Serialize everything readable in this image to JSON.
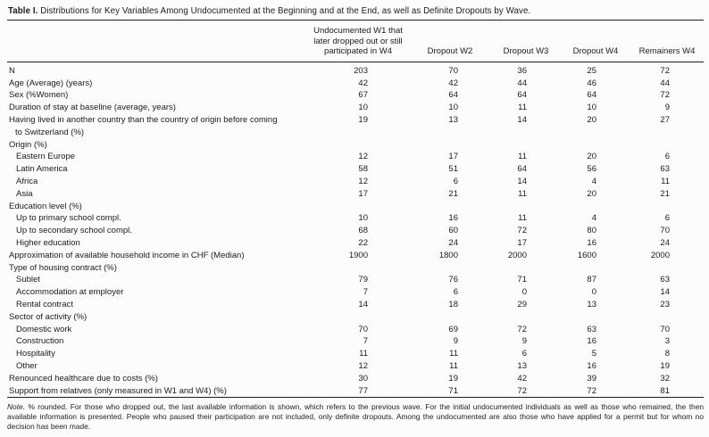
{
  "title": {
    "label": "Table I.",
    "text": "Distributions for Key Variables Among Undocumented at the Beginning and at the End, as well as Definite Dropouts by Wave."
  },
  "table": {
    "columns": [
      "Undocumented W1 that\nlater dropped out or still\nparticipated in W4",
      "Dropout W2",
      "Dropout W3",
      "Dropout W4",
      "Remainers W4"
    ],
    "rows": [
      {
        "label": "N",
        "indent": 0,
        "values": [
          "203",
          "70",
          "36",
          "25",
          "72"
        ]
      },
      {
        "label": "Age (Average) (years)",
        "indent": 0,
        "values": [
          "42",
          "42",
          "44",
          "46",
          "44"
        ]
      },
      {
        "label": "Sex (%Women)",
        "indent": 0,
        "values": [
          "67",
          "64",
          "64",
          "64",
          "72"
        ]
      },
      {
        "label": "Duration of stay at baseline (average, years)",
        "indent": 0,
        "values": [
          "10",
          "10",
          "11",
          "10",
          "9"
        ]
      },
      {
        "label": "Having lived in another country than the country of origin before coming\nto Switzerland (%)",
        "indent": 0,
        "values": [
          "19",
          "13",
          "14",
          "20",
          "27"
        ]
      },
      {
        "label": "Origin (%)",
        "indent": 0,
        "values": [
          "",
          "",
          "",
          "",
          ""
        ]
      },
      {
        "label": "Eastern Europe",
        "indent": 1,
        "values": [
          "12",
          "17",
          "11",
          "20",
          "6"
        ]
      },
      {
        "label": "Latin America",
        "indent": 1,
        "values": [
          "58",
          "51",
          "64",
          "56",
          "63"
        ]
      },
      {
        "label": "Africa",
        "indent": 1,
        "values": [
          "12",
          "6",
          "14",
          "4",
          "11"
        ]
      },
      {
        "label": "Asia",
        "indent": 1,
        "values": [
          "17",
          "21",
          "11",
          "20",
          "21"
        ]
      },
      {
        "label": "Education level (%)",
        "indent": 0,
        "values": [
          "",
          "",
          "",
          "",
          ""
        ]
      },
      {
        "label": "Up to primary school compl.",
        "indent": 1,
        "values": [
          "10",
          "16",
          "11",
          "4",
          "6"
        ]
      },
      {
        "label": "Up to secondary school compl.",
        "indent": 1,
        "values": [
          "68",
          "60",
          "72",
          "80",
          "70"
        ]
      },
      {
        "label": "Higher education",
        "indent": 1,
        "values": [
          "22",
          "24",
          "17",
          "16",
          "24"
        ]
      },
      {
        "label": "Approximation of available household income in CHF (Median)",
        "indent": 0,
        "values": [
          "1900",
          "1800",
          "2000",
          "1600",
          "2000"
        ]
      },
      {
        "label": "Type of housing contract (%)",
        "indent": 0,
        "values": [
          "",
          "",
          "",
          "",
          ""
        ]
      },
      {
        "label": "Sublet",
        "indent": 1,
        "values": [
          "79",
          "76",
          "71",
          "87",
          "63"
        ]
      },
      {
        "label": "Accommodation at employer",
        "indent": 1,
        "values": [
          "7",
          "6",
          "0",
          "0",
          "14"
        ]
      },
      {
        "label": "Rental contract",
        "indent": 1,
        "values": [
          "14",
          "18",
          "29",
          "13",
          "23"
        ]
      },
      {
        "label": "Sector of activity (%)",
        "indent": 0,
        "values": [
          "",
          "",
          "",
          "",
          ""
        ]
      },
      {
        "label": "Domestic work",
        "indent": 1,
        "values": [
          "70",
          "69",
          "72",
          "63",
          "70"
        ]
      },
      {
        "label": "Construction",
        "indent": 1,
        "values": [
          "7",
          "9",
          "9",
          "16",
          "3"
        ]
      },
      {
        "label": "Hospitality",
        "indent": 1,
        "values": [
          "11",
          "11",
          "6",
          "5",
          "8"
        ]
      },
      {
        "label": "Other",
        "indent": 1,
        "values": [
          "12",
          "11",
          "13",
          "16",
          "19"
        ]
      },
      {
        "label": "Renounced healthcare due to costs (%)",
        "indent": 0,
        "values": [
          "30",
          "19",
          "42",
          "39",
          "32"
        ]
      },
      {
        "label": "Support from relatives (only measured in W1 and W4) (%)",
        "indent": 0,
        "values": [
          "77",
          "71",
          "72",
          "72",
          "81"
        ]
      }
    ]
  },
  "note": {
    "label": "Note.",
    "text": "% rounded. For those who dropped out, the last available information is shown, which refers to the previous wave. For the initial undocumented individuals as well as those who remained, the then available information is presented. People who paused their participation are not included, only definite dropouts. Among the undocumented are also those who have applied for a permit but for whom no decision has been made."
  },
  "colors": {
    "text": "#1b1b1b",
    "rule": "#1f1f1f",
    "background": "#fcfcfc"
  }
}
